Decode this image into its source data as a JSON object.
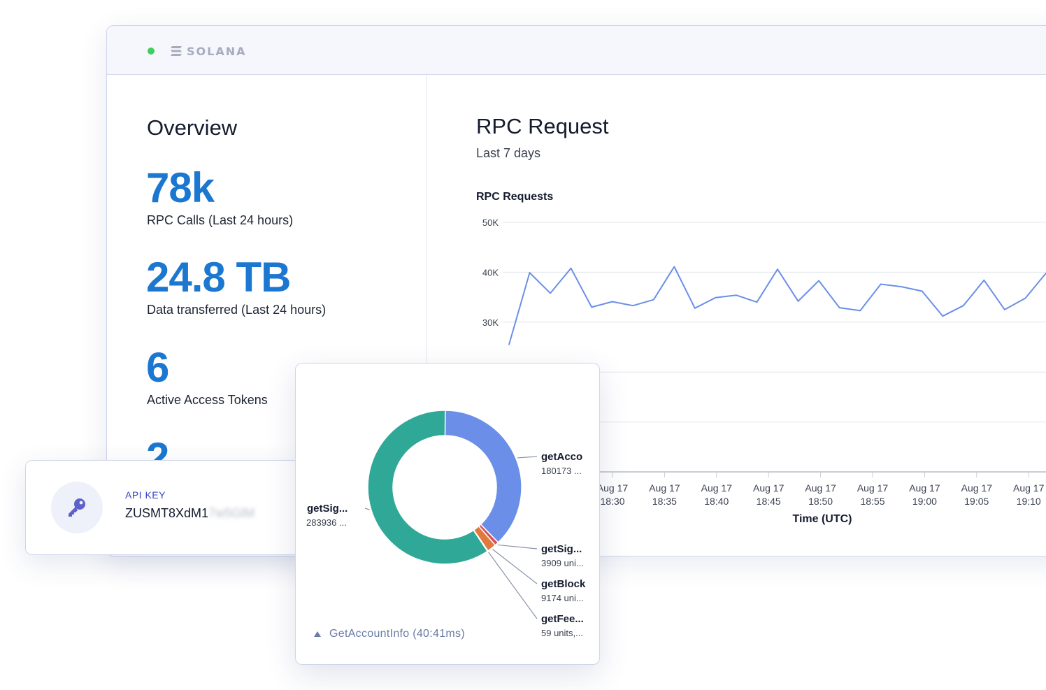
{
  "brand": {
    "name": "SOLANA",
    "status_color": "#3ecf5c"
  },
  "overview": {
    "title": "Overview",
    "stats": [
      {
        "value": "78k",
        "label": "RPC Calls (Last 24 hours)"
      },
      {
        "value": "24.8 TB",
        "label": "Data transferred (Last 24 hours)"
      },
      {
        "value": "6",
        "label": "Active Access Tokens"
      },
      {
        "value": "2",
        "label": ""
      }
    ]
  },
  "rpc": {
    "title": "RPC Request",
    "subtitle": "Last 7 days"
  },
  "api_key": {
    "label": "API KEY",
    "value_visible": "ZUSMT8XdM1",
    "value_masked": "7w5GlM",
    "icon": "key-icon"
  },
  "donut": {
    "footer": "GetAccountInfo (40:41ms)",
    "footer_icon": "triangle-up-icon"
  },
  "chart_data": [
    {
      "type": "line",
      "title": "RPC Requests",
      "xlabel": "Time (UTC)",
      "ylabel": "",
      "y_ticks": [
        "50K",
        "40K",
        "30K"
      ],
      "ylim": [
        0,
        50000
      ],
      "x_tick_labels": [
        [
          "Aug 17",
          "18:30"
        ],
        [
          "Aug 17",
          "18:35"
        ],
        [
          "Aug 17",
          "18:40"
        ],
        [
          "Aug 17",
          "18:45"
        ],
        [
          "Aug 17",
          "18:50"
        ],
        [
          "Aug 17",
          "18:55"
        ],
        [
          "Aug 17",
          "19:00"
        ],
        [
          "Aug 17",
          "19:05"
        ],
        [
          "Aug 17",
          "19:10"
        ]
      ],
      "grid": true,
      "line_color": "#6b8fe8",
      "series": [
        {
          "values": [
            25500,
            39900,
            35800,
            40800,
            33000,
            34100,
            33300,
            34500,
            41100,
            32800,
            34900,
            35400,
            34000,
            40600,
            34200,
            38300,
            32900,
            32300,
            37600,
            37100,
            36200,
            31200,
            33300,
            38400,
            32500,
            34800,
            39800
          ]
        }
      ]
    },
    {
      "type": "pie",
      "variant": "donut",
      "categories": [
        "getAcco",
        "getSig...",
        "getBlock",
        "getFee...",
        "getSig..."
      ],
      "value_labels": [
        "180173 ...",
        "3909 uni...",
        "9174 uni...",
        "59 units,...",
        "283936 ..."
      ],
      "values": [
        180173,
        3909,
        9174,
        59,
        283936
      ],
      "colors": [
        "#6b8fe8",
        "#d6505a",
        "#e07a3c",
        "#8a63d2",
        "#2fa898"
      ]
    }
  ]
}
